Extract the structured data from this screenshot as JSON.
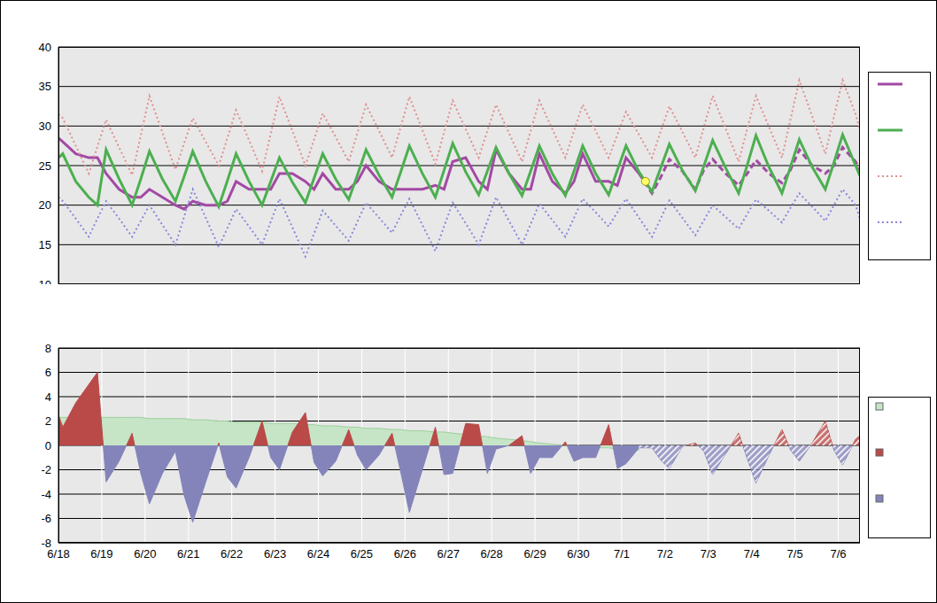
{
  "chart_data": [
    {
      "type": "line",
      "grid": true,
      "legend": "right",
      "tick_labels": "y",
      "xlim": [
        0,
        18.5
      ],
      "xticks": [
        {
          "value": 0,
          "label": "6/18"
        },
        {
          "value": 1,
          "label": "6/19"
        },
        {
          "value": 2,
          "label": "6/20"
        },
        {
          "value": 3,
          "label": "6/21"
        },
        {
          "value": 4,
          "label": "6/22"
        },
        {
          "value": 5,
          "label": "6/23"
        },
        {
          "value": 6,
          "label": "6/24"
        },
        {
          "value": 7,
          "label": "6/25"
        },
        {
          "value": 8,
          "label": "6/26"
        },
        {
          "value": 9,
          "label": "6/27"
        },
        {
          "value": 10,
          "label": "6/28"
        },
        {
          "value": 11,
          "label": "6/29"
        },
        {
          "value": 12,
          "label": "6/30"
        },
        {
          "value": 13,
          "label": "7/1"
        },
        {
          "value": 14,
          "label": "7/2"
        },
        {
          "value": 15,
          "label": "7/3"
        },
        {
          "value": 16,
          "label": "7/4"
        },
        {
          "value": 17,
          "label": "7/5"
        },
        {
          "value": 18,
          "label": "7/6"
        }
      ],
      "ylim": [
        10,
        40
      ],
      "yticks": [
        10,
        15,
        20,
        25,
        30,
        35,
        40
      ],
      "x": [
        0,
        0.1,
        0.4,
        0.7,
        0.9,
        1.1,
        1.4,
        1.7,
        1.9,
        2.1,
        2.4,
        2.7,
        2.9,
        3.1,
        3.4,
        3.7,
        3.9,
        4.1,
        4.4,
        4.7,
        4.9,
        5.1,
        5.4,
        5.7,
        5.9,
        6.1,
        6.4,
        6.7,
        6.9,
        7.1,
        7.4,
        7.7,
        7.9,
        8.1,
        8.4,
        8.7,
        8.9,
        9.1,
        9.4,
        9.7,
        9.9,
        10.1,
        10.4,
        10.7,
        10.9,
        11.1,
        11.4,
        11.7,
        11.9,
        12.1,
        12.4,
        12.7,
        12.9,
        13.1,
        13.4,
        13.7,
        13.9,
        14.1,
        14.4,
        14.7,
        14.9,
        15.1,
        15.4,
        15.7,
        15.9,
        16.1,
        16.4,
        16.7,
        16.9,
        17.1,
        17.4,
        17.7,
        17.9,
        18.1,
        18.4,
        18.5
      ],
      "series": [
        {
          "color": "#a349a4",
          "line_style": "solid",
          "values": [
            28.5,
            28,
            26.5,
            26,
            26,
            24,
            22,
            21,
            21,
            22,
            21,
            20,
            19.5,
            20.5,
            20,
            20,
            20.5,
            23,
            22,
            22,
            22,
            24,
            24,
            23,
            22,
            24,
            22,
            22,
            23,
            25,
            23,
            22,
            22,
            22,
            22,
            22.5,
            22,
            25.5,
            26,
            23,
            22,
            27,
            24,
            22,
            22,
            26.5,
            23,
            21.5,
            23,
            26.5,
            23,
            23,
            22.5,
            26,
            24,
            null,
            null,
            null,
            null,
            null,
            null,
            null,
            null,
            null,
            null,
            null,
            null,
            null,
            null,
            null,
            null,
            null,
            null,
            null,
            null,
            null
          ]
        },
        {
          "color": "#a349a4",
          "line_style": "dashed",
          "values": [
            null,
            null,
            null,
            null,
            null,
            null,
            null,
            null,
            null,
            null,
            null,
            null,
            null,
            null,
            null,
            null,
            null,
            null,
            null,
            null,
            null,
            null,
            null,
            null,
            null,
            null,
            null,
            null,
            null,
            null,
            null,
            null,
            null,
            null,
            null,
            null,
            null,
            null,
            null,
            null,
            null,
            null,
            null,
            null,
            null,
            null,
            null,
            null,
            null,
            null,
            null,
            null,
            null,
            null,
            24,
            21.5,
            23.5,
            25.8,
            24.3,
            22,
            24.5,
            25.8,
            24,
            22.5,
            24,
            25.7,
            24,
            22.8,
            24.5,
            27,
            25,
            24,
            25,
            27.3,
            25.5,
            24.5
          ]
        },
        {
          "color": "#4caf50",
          "line_style": "solid",
          "values": [
            26,
            26.5,
            23,
            21,
            20,
            27,
            23.3,
            20,
            23.3,
            26.8,
            23.3,
            20.5,
            23.6,
            26.8,
            23,
            19.8,
            23.1,
            26.5,
            23,
            20,
            23,
            26,
            22.9,
            20.3,
            23.4,
            26.5,
            23.3,
            20.7,
            23.8,
            27,
            23.8,
            21,
            24.2,
            27.5,
            24,
            21,
            24.4,
            27.8,
            24.2,
            21.3,
            24.3,
            27.3,
            24,
            21.2,
            24.3,
            27.5,
            24,
            21.2,
            24.3,
            27.5,
            24,
            21.3,
            24.4,
            27.5,
            24.2,
            21.7,
            24.7,
            27.7,
            24.4,
            21.8,
            25,
            28.2,
            24.7,
            21.5,
            25.1,
            28.8,
            24.8,
            21.5,
            24.9,
            28.3,
            24.8,
            22,
            25.4,
            28.9,
            25,
            23.7
          ]
        },
        {
          "color": "#e09090",
          "line_style": "dotted",
          "values": [
            31.5,
            31,
            27.5,
            24,
            27.4,
            30.8,
            27.3,
            23.8,
            28.8,
            33.8,
            29.2,
            24.5,
            27.8,
            31,
            28,
            25,
            28.5,
            32,
            28.2,
            24.3,
            29,
            33.7,
            29.4,
            25,
            28.3,
            31.6,
            28.6,
            25.5,
            29.1,
            32.7,
            29.4,
            26,
            29.9,
            33.7,
            29.5,
            25.2,
            29.2,
            33.2,
            29.6,
            26,
            29.4,
            32.7,
            29.1,
            25.5,
            29.4,
            33.2,
            29.6,
            26,
            29.4,
            32.7,
            29.4,
            26,
            28.9,
            31.8,
            28.9,
            26,
            29.3,
            32.5,
            29.3,
            26,
            29.9,
            33.8,
            29.7,
            25.5,
            29.7,
            33.8,
            29.9,
            26,
            30.9,
            35.8,
            31.2,
            26.5,
            31.2,
            35.8,
            31.5,
            29.5
          ]
        },
        {
          "color": "#8888dd",
          "line_style": "dotted",
          "values": [
            21,
            20.5,
            18.3,
            16,
            18.3,
            20.5,
            18.3,
            16,
            18,
            20,
            17.5,
            15,
            18.5,
            22,
            18.4,
            14.7,
            17.1,
            19.5,
            17.3,
            15,
            17.9,
            20.8,
            17.2,
            13.5,
            16.4,
            19.3,
            17.4,
            15.5,
            17.9,
            20.3,
            18.4,
            16.5,
            18.7,
            20.8,
            17.5,
            14.2,
            17.3,
            20.3,
            17.7,
            15,
            18,
            21,
            18,
            15,
            17.6,
            20.2,
            18.1,
            16,
            18.4,
            20.8,
            19.1,
            17.3,
            19.1,
            20.8,
            18.4,
            16,
            18.3,
            20.6,
            18.4,
            16.2,
            18.1,
            20,
            18.5,
            17,
            18.9,
            20.7,
            19.3,
            17.8,
            19.7,
            21.5,
            19.8,
            18,
            20,
            22,
            20,
            18.3
          ]
        },
        {
          "type": "scatter",
          "color": "#ffff66",
          "marker": "circle",
          "x": [
            13.55
          ],
          "values": [
            23
          ]
        }
      ]
    },
    {
      "type": "area",
      "grid": true,
      "legend": "right",
      "xlim": [
        0,
        18.5
      ],
      "xticks": [
        {
          "value": 0,
          "label": "6/18"
        },
        {
          "value": 1,
          "label": "6/19"
        },
        {
          "value": 2,
          "label": "6/20"
        },
        {
          "value": 3,
          "label": "6/21"
        },
        {
          "value": 4,
          "label": "6/22"
        },
        {
          "value": 5,
          "label": "6/23"
        },
        {
          "value": 6,
          "label": "6/24"
        },
        {
          "value": 7,
          "label": "6/25"
        },
        {
          "value": 8,
          "label": "6/26"
        },
        {
          "value": 9,
          "label": "6/27"
        },
        {
          "value": 10,
          "label": "6/28"
        },
        {
          "value": 11,
          "label": "6/29"
        },
        {
          "value": 12,
          "label": "6/30"
        },
        {
          "value": 13,
          "label": "7/1"
        },
        {
          "value": 14,
          "label": "7/2"
        },
        {
          "value": 15,
          "label": "7/3"
        },
        {
          "value": 16,
          "label": "7/4"
        },
        {
          "value": 17,
          "label": "7/5"
        },
        {
          "value": 18,
          "label": "7/6"
        }
      ],
      "ylim": [
        -8,
        8
      ],
      "yticks": [
        -8,
        -6,
        -4,
        -2,
        0,
        2,
        4,
        6,
        8
      ],
      "x": [
        0,
        0.1,
        0.4,
        0.7,
        0.9,
        1.1,
        1.4,
        1.7,
        1.9,
        2.1,
        2.4,
        2.7,
        2.9,
        3.1,
        3.4,
        3.7,
        3.9,
        4.1,
        4.4,
        4.7,
        4.9,
        5.1,
        5.4,
        5.7,
        5.9,
        6.1,
        6.4,
        6.7,
        6.9,
        7.1,
        7.4,
        7.7,
        7.9,
        8.1,
        8.4,
        8.7,
        8.9,
        9.1,
        9.4,
        9.7,
        9.9,
        10.1,
        10.4,
        10.7,
        10.9,
        11.1,
        11.4,
        11.7,
        11.9,
        12.1,
        12.4,
        12.7,
        12.9,
        13.1,
        13.4,
        13.7,
        13.9,
        14.1,
        14.4,
        14.7,
        14.9,
        15.1,
        15.4,
        15.7,
        15.9,
        16.1,
        16.4,
        16.7,
        16.9,
        17.1,
        17.4,
        17.7,
        17.9,
        18.1,
        18.4,
        18.5
      ],
      "series": [
        {
          "color": "#c6e5c6",
          "values": [
            2.3,
            2.3,
            2.3,
            2.3,
            2.3,
            2.3,
            2.3,
            2.3,
            2.3,
            2.2,
            2.2,
            2.2,
            2.2,
            2.1,
            2.1,
            2.0,
            2.0,
            1.9,
            1.9,
            1.9,
            1.8,
            1.8,
            1.8,
            1.7,
            1.7,
            1.6,
            1.6,
            1.5,
            1.5,
            1.4,
            1.4,
            1.3,
            1.3,
            1.2,
            1.2,
            1.1,
            1.1,
            1.0,
            0.9,
            0.8,
            0.7,
            0.6,
            0.5,
            0.4,
            0.3,
            0.2,
            0.1,
            0.0,
            -0.1,
            -0.1,
            -0.2,
            -0.2,
            -0.3,
            -0.3,
            -0.4,
            null,
            null,
            null,
            null,
            null,
            null,
            null,
            null,
            null,
            null,
            null,
            null,
            null,
            null,
            null,
            null,
            null,
            null,
            null,
            null,
            null
          ]
        },
        {
          "colors": [
            "#b94a48",
            "#8484bb"
          ],
          "line_style": "solid",
          "values": [
            2.5,
            1.5,
            3.5,
            5,
            6,
            -3,
            -1.3,
            1,
            -2.3,
            -4.8,
            -2.3,
            -0.5,
            -4.1,
            -6.3,
            -3,
            0.2,
            -2.6,
            -3.5,
            -1,
            2,
            -1,
            -2,
            1.1,
            2.7,
            -1.4,
            -2.5,
            -1.3,
            1.3,
            -0.8,
            -2,
            -0.8,
            1,
            -2.2,
            -5.5,
            -2,
            1.5,
            -2.4,
            -2.3,
            1.8,
            1.7,
            -2.3,
            -0.3,
            0,
            0.8,
            -2.3,
            -1,
            -1,
            0.3,
            -1.3,
            -1,
            -1,
            1.7,
            -1.9,
            -1.5,
            -0.2,
            null,
            null,
            null,
            null,
            null,
            null,
            null,
            null,
            null,
            null,
            null,
            null,
            null,
            null,
            null,
            null,
            null,
            null,
            null,
            null,
            null
          ]
        },
        {
          "colors": [
            "#b94a48",
            "#8484bb"
          ],
          "line_style": "hatched",
          "values": [
            null,
            null,
            null,
            null,
            null,
            null,
            null,
            null,
            null,
            null,
            null,
            null,
            null,
            null,
            null,
            null,
            null,
            null,
            null,
            null,
            null,
            null,
            null,
            null,
            null,
            null,
            null,
            null,
            null,
            null,
            null,
            null,
            null,
            null,
            null,
            null,
            null,
            null,
            null,
            null,
            null,
            null,
            null,
            null,
            null,
            null,
            null,
            null,
            null,
            null,
            null,
            null,
            null,
            null,
            -0.2,
            -0.2,
            -1.2,
            -1.9,
            -0.1,
            0.2,
            -0.5,
            -2.4,
            -0.7,
            1,
            -1.1,
            -3.1,
            -0.8,
            1.3,
            -0.4,
            -1.3,
            0.2,
            2,
            -0.4,
            -1.6,
            0.5,
            0.8
          ]
        }
      ]
    }
  ]
}
